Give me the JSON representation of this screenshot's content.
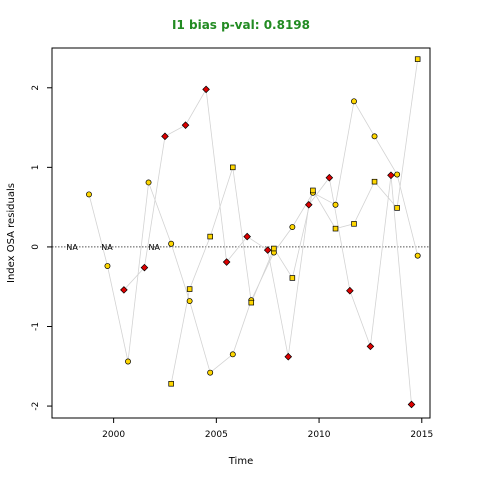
{
  "chart_data": {
    "type": "scatter",
    "title": "I1 bias p-val: 0.8198",
    "title_color": "#228B22",
    "xlabel": "Time",
    "ylabel": "Index OSA residuals",
    "xlim": [
      1997.0,
      2015.4
    ],
    "ylim": [
      -2.15,
      2.5
    ],
    "xticks": [
      2000,
      2005,
      2010,
      2015
    ],
    "yticks": [
      -2,
      -1,
      0,
      1,
      2
    ],
    "reference_line": 0,
    "na_labels": [
      {
        "x": 1997.7,
        "text": "NA"
      },
      {
        "x": 1999.4,
        "text": "NA"
      },
      {
        "x": 2001.7,
        "text": "NA"
      }
    ],
    "line_color": "#d3d3d3",
    "series": [
      {
        "marker": "circle",
        "fill": "#ffd700",
        "points": [
          {
            "x": 1998.8,
            "y": 0.66
          },
          {
            "x": 1999.7,
            "y": -0.24
          },
          {
            "x": 2000.7,
            "y": -1.44
          },
          {
            "x": 2001.7,
            "y": 0.81
          },
          {
            "x": 2002.8,
            "y": 0.04
          },
          {
            "x": 2003.7,
            "y": -0.68
          },
          {
            "x": 2004.7,
            "y": -1.58
          },
          {
            "x": 2005.8,
            "y": -1.35
          },
          {
            "x": 2006.7,
            "y": -0.67
          },
          {
            "x": 2007.8,
            "y": -0.07
          },
          {
            "x": 2008.7,
            "y": 0.25
          },
          {
            "x": 2009.7,
            "y": 0.68
          },
          {
            "x": 2010.8,
            "y": 0.53
          },
          {
            "x": 2011.7,
            "y": 1.83
          },
          {
            "x": 2012.7,
            "y": 1.39
          },
          {
            "x": 2013.8,
            "y": 0.91
          },
          {
            "x": 2014.8,
            "y": -0.11
          }
        ]
      },
      {
        "marker": "diamond",
        "fill": "#dd0000",
        "points": [
          {
            "x": 2000.5,
            "y": -0.54
          },
          {
            "x": 2001.5,
            "y": -0.26
          },
          {
            "x": 2002.5,
            "y": 1.39
          },
          {
            "x": 2003.5,
            "y": 1.53
          },
          {
            "x": 2004.5,
            "y": 1.98
          },
          {
            "x": 2005.5,
            "y": -0.19
          },
          {
            "x": 2006.5,
            "y": 0.13
          },
          {
            "x": 2007.5,
            "y": -0.04
          },
          {
            "x": 2008.5,
            "y": -1.38
          },
          {
            "x": 2009.5,
            "y": 0.53
          },
          {
            "x": 2010.5,
            "y": 0.87
          },
          {
            "x": 2011.5,
            "y": -0.55
          },
          {
            "x": 2012.5,
            "y": -1.25
          },
          {
            "x": 2013.5,
            "y": 0.9
          },
          {
            "x": 2014.5,
            "y": -1.98
          }
        ]
      },
      {
        "marker": "square",
        "fill": "#ffd700",
        "points": [
          {
            "x": 2002.8,
            "y": -1.72
          },
          {
            "x": 2003.7,
            "y": -0.53
          },
          {
            "x": 2004.7,
            "y": 0.13
          },
          {
            "x": 2005.8,
            "y": 1.0
          },
          {
            "x": 2006.7,
            "y": -0.7
          },
          {
            "x": 2007.8,
            "y": -0.02
          },
          {
            "x": 2008.7,
            "y": -0.39
          },
          {
            "x": 2009.7,
            "y": 0.71
          },
          {
            "x": 2010.8,
            "y": 0.23
          },
          {
            "x": 2011.7,
            "y": 0.29
          },
          {
            "x": 2012.7,
            "y": 0.82
          },
          {
            "x": 2013.8,
            "y": 0.49
          },
          {
            "x": 2014.8,
            "y": 2.36
          }
        ]
      }
    ]
  }
}
